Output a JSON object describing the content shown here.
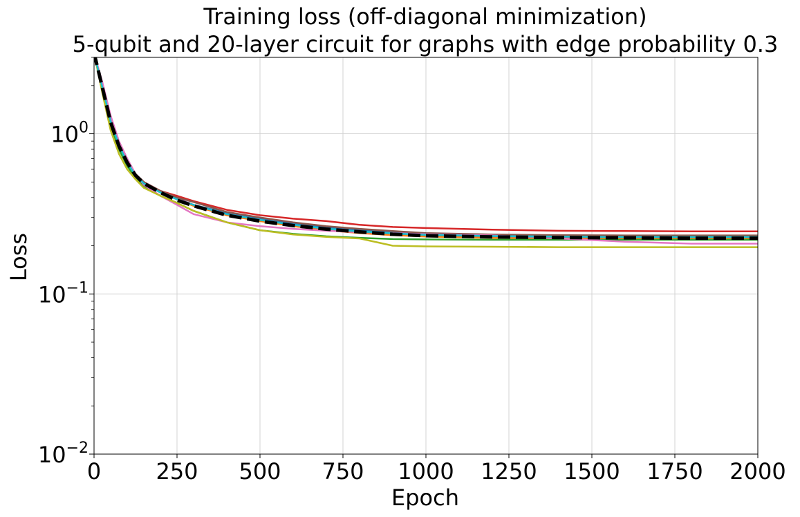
{
  "chart_data": {
    "type": "line",
    "title": "Training loss (off-diagonal minimization)",
    "subtitle": "5-qubit and 20-layer circuit for graphs with edge probability 0.3",
    "xlabel": "Epoch",
    "ylabel": "Loss",
    "xlim": [
      0,
      2000
    ],
    "ylim": [
      0.01,
      3.0
    ],
    "yscale": "log",
    "grid": true,
    "legend": "none",
    "x_ticks": [
      "0",
      "250",
      "500",
      "750",
      "1000",
      "1250",
      "1500",
      "1750",
      "2000"
    ],
    "y_ticks": [
      {
        "value": 0.01,
        "base": "10",
        "exp": "−2"
      },
      {
        "value": 0.1,
        "base": "10",
        "exp": "−1"
      },
      {
        "value": 1,
        "base": "10",
        "exp": "0"
      }
    ],
    "x": [
      0,
      25,
      50,
      75,
      100,
      125,
      150,
      200,
      250,
      300,
      400,
      500,
      600,
      700,
      800,
      900,
      1000,
      1200,
      1400,
      1600,
      1800,
      2000
    ],
    "series": [
      {
        "color": "#1f77b4",
        "values": [
          3.2,
          1.95,
          1.2,
          0.85,
          0.66,
          0.55,
          0.49,
          0.43,
          0.39,
          0.36,
          0.32,
          0.295,
          0.275,
          0.26,
          0.25,
          0.243,
          0.238,
          0.233,
          0.232,
          0.231,
          0.231,
          0.231
        ]
      },
      {
        "color": "#ff7f0e",
        "values": [
          3.2,
          1.95,
          1.2,
          0.85,
          0.67,
          0.56,
          0.5,
          0.44,
          0.39,
          0.355,
          0.31,
          0.285,
          0.265,
          0.25,
          0.24,
          0.233,
          0.228,
          0.224,
          0.222,
          0.222,
          0.221,
          0.221
        ]
      },
      {
        "color": "#2ca02c",
        "values": [
          3.2,
          1.85,
          1.1,
          0.8,
          0.63,
          0.53,
          0.47,
          0.41,
          0.37,
          0.33,
          0.28,
          0.25,
          0.237,
          0.229,
          0.224,
          0.22,
          0.219,
          0.218,
          0.218,
          0.218,
          0.218,
          0.218
        ]
      },
      {
        "color": "#d62728",
        "values": [
          3.2,
          2.0,
          1.22,
          0.86,
          0.67,
          0.56,
          0.5,
          0.44,
          0.41,
          0.38,
          0.335,
          0.31,
          0.295,
          0.285,
          0.27,
          0.262,
          0.258,
          0.252,
          0.248,
          0.247,
          0.246,
          0.246
        ]
      },
      {
        "color": "#9467bd",
        "values": [
          3.2,
          1.98,
          1.2,
          0.85,
          0.67,
          0.56,
          0.5,
          0.44,
          0.395,
          0.36,
          0.315,
          0.29,
          0.27,
          0.255,
          0.245,
          0.238,
          0.234,
          0.231,
          0.229,
          0.228,
          0.228,
          0.228
        ]
      },
      {
        "color": "#8c564b",
        "values": [
          3.2,
          1.98,
          1.2,
          0.86,
          0.67,
          0.56,
          0.5,
          0.44,
          0.4,
          0.375,
          0.325,
          0.3,
          0.28,
          0.265,
          0.255,
          0.247,
          0.24,
          0.235,
          0.233,
          0.232,
          0.232,
          0.232
        ]
      },
      {
        "color": "#e377c2",
        "values": [
          3.2,
          2.1,
          1.3,
          0.9,
          0.7,
          0.56,
          0.48,
          0.41,
          0.36,
          0.315,
          0.28,
          0.265,
          0.255,
          0.248,
          0.243,
          0.24,
          0.236,
          0.232,
          0.222,
          0.212,
          0.206,
          0.206
        ]
      },
      {
        "color": "#7f7f7f",
        "values": [
          3.2,
          1.95,
          1.2,
          0.85,
          0.66,
          0.55,
          0.49,
          0.43,
          0.39,
          0.36,
          0.315,
          0.29,
          0.27,
          0.255,
          0.245,
          0.238,
          0.233,
          0.229,
          0.227,
          0.226,
          0.226,
          0.226
        ]
      },
      {
        "color": "#bcbd22",
        "values": [
          3.2,
          1.8,
          1.05,
          0.75,
          0.6,
          0.52,
          0.46,
          0.41,
          0.37,
          0.33,
          0.28,
          0.25,
          0.235,
          0.227,
          0.222,
          0.2,
          0.198,
          0.197,
          0.196,
          0.196,
          0.196,
          0.196
        ]
      },
      {
        "color": "#17becf",
        "values": [
          3.2,
          1.95,
          1.2,
          0.85,
          0.66,
          0.55,
          0.49,
          0.43,
          0.39,
          0.36,
          0.315,
          0.29,
          0.27,
          0.256,
          0.246,
          0.239,
          0.234,
          0.23,
          0.228,
          0.227,
          0.227,
          0.227
        ]
      },
      {
        "color": "#000000",
        "dashed": true,
        "values": [
          3.2,
          1.95,
          1.18,
          0.84,
          0.66,
          0.55,
          0.49,
          0.43,
          0.385,
          0.355,
          0.31,
          0.285,
          0.267,
          0.254,
          0.244,
          0.236,
          0.231,
          0.227,
          0.225,
          0.224,
          0.223,
          0.223
        ]
      }
    ]
  }
}
